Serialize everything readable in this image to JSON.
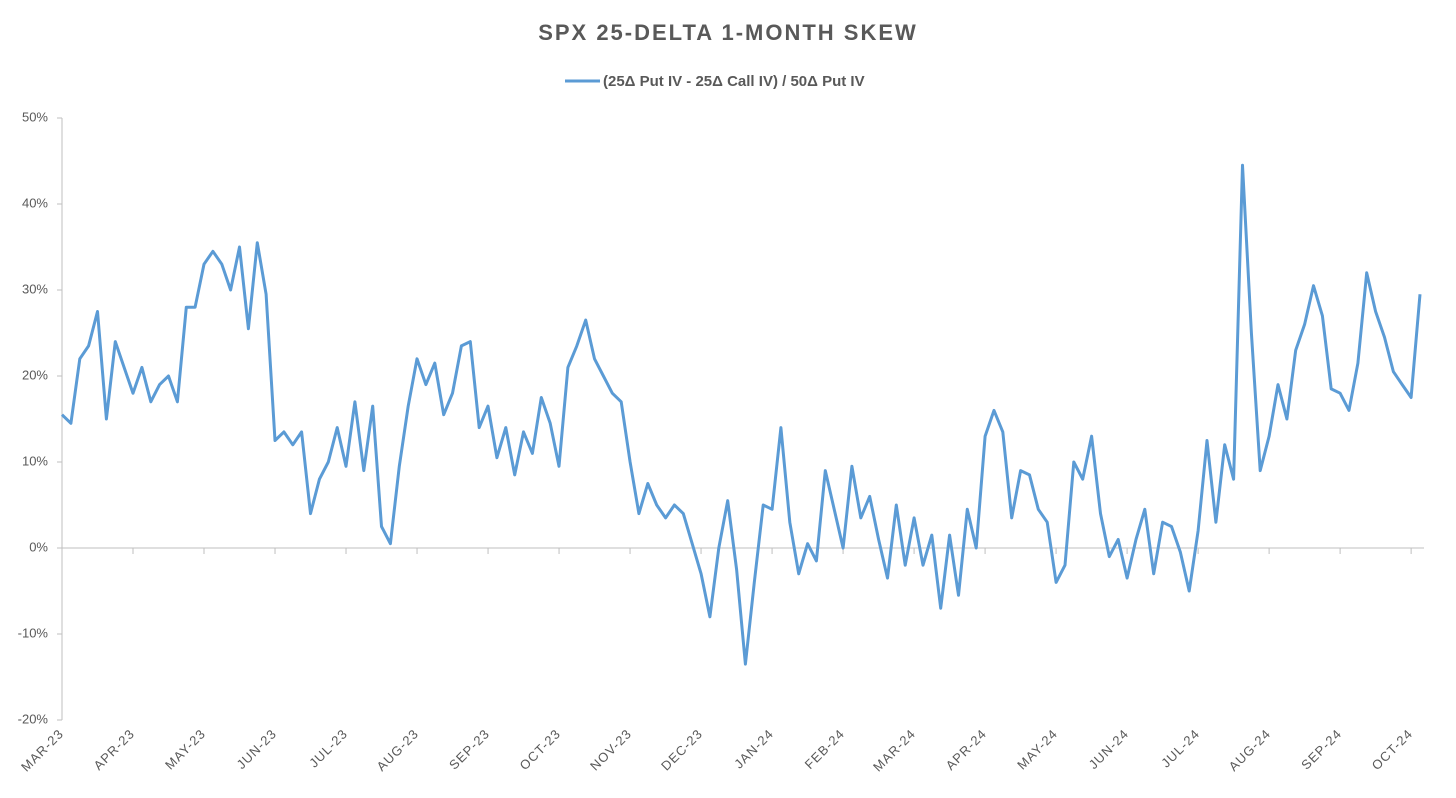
{
  "chart_data": {
    "type": "line",
    "title": "SPX 25-DELTA 1-MONTH SKEW",
    "categories": [
      "MAR-23",
      null,
      null,
      null,
      null,
      null,
      null,
      null,
      "APR-23",
      null,
      null,
      null,
      null,
      null,
      null,
      null,
      "MAY-23",
      null,
      null,
      null,
      null,
      null,
      null,
      null,
      "JUN-23",
      null,
      null,
      null,
      null,
      null,
      null,
      null,
      "JUL-23",
      null,
      null,
      null,
      null,
      null,
      null,
      null,
      "AUG-23",
      null,
      null,
      null,
      null,
      null,
      null,
      null,
      "SEP-23",
      null,
      null,
      null,
      null,
      null,
      null,
      null,
      "OCT-23",
      null,
      null,
      null,
      null,
      null,
      null,
      null,
      "NOV-23",
      null,
      null,
      null,
      null,
      null,
      null,
      null,
      "DEC-23",
      null,
      null,
      null,
      null,
      null,
      null,
      null,
      "JAN-24",
      null,
      null,
      null,
      null,
      null,
      null,
      null,
      "FEB-24",
      null,
      null,
      null,
      null,
      null,
      null,
      null,
      "MAR-24",
      null,
      null,
      null,
      null,
      null,
      null,
      null,
      "APR-24",
      null,
      null,
      null,
      null,
      null,
      null,
      null,
      "MAY-24",
      null,
      null,
      null,
      null,
      null,
      null,
      null,
      "JUN-24",
      null,
      null,
      null,
      null,
      null,
      null,
      null,
      "JUL-24",
      null,
      null,
      null,
      null,
      null,
      null,
      null,
      "AUG-24",
      null,
      null,
      null,
      null,
      null,
      null,
      null,
      "SEP-24",
      null,
      null,
      null,
      null,
      null,
      null,
      null,
      "OCT-24",
      null
    ],
    "series": [
      {
        "name": "(25Δ Put IV - 25Δ Call IV) / 50Δ Put IV",
        "color": "#5b9bd5",
        "values": [
          15.5,
          14.5,
          22,
          23.5,
          27.5,
          15,
          24,
          21,
          18,
          21,
          17,
          19,
          20,
          17,
          28,
          28,
          33,
          34.5,
          33,
          30,
          35,
          25.5,
          35.5,
          29.5,
          12.5,
          13.5,
          12,
          13.5,
          4,
          8,
          10,
          14,
          9.5,
          17,
          9,
          16.5,
          2.5,
          0.5,
          9.5,
          16.5,
          22,
          19,
          21.5,
          15.5,
          18,
          23.5,
          24,
          14,
          16.5,
          10.5,
          14,
          8.5,
          13.5,
          11,
          17.5,
          14.5,
          9.5,
          21,
          23.5,
          26.5,
          22,
          20,
          18,
          17,
          10,
          4,
          7.5,
          5,
          3.5,
          5,
          4,
          0.5,
          -3,
          -8,
          0,
          5.5,
          -2.5,
          -13.5,
          -4,
          5,
          4.5,
          14,
          3,
          -3,
          0.5,
          -1.5,
          9,
          4.5,
          0,
          9.5,
          3.5,
          6,
          1,
          -3.5,
          5,
          -2,
          3.5,
          -2,
          1.5,
          -7,
          1.5,
          -5.5,
          4.5,
          0,
          13,
          16,
          13.5,
          3.5,
          9,
          8.5,
          4.5,
          3,
          -4,
          -2,
          10,
          8,
          13,
          4,
          -1,
          1,
          -3.5,
          1,
          4.5,
          -3,
          3,
          2.5,
          -0.5,
          -5,
          2,
          12.5,
          3,
          12,
          8,
          44.5,
          25,
          9,
          13,
          19,
          15,
          23,
          26,
          30.5,
          27,
          18.5,
          18,
          16,
          21.5,
          32,
          27.5,
          24.5,
          20.5,
          19,
          17.5,
          29.5
        ]
      }
    ],
    "ylim": [
      -20,
      50
    ],
    "yticks": [
      {
        "value": -20,
        "label": "-20%"
      },
      {
        "value": -10,
        "label": "-10%"
      },
      {
        "value": 0,
        "label": "0%"
      },
      {
        "value": 10,
        "label": "10%"
      },
      {
        "value": 20,
        "label": "20%"
      },
      {
        "value": 30,
        "label": "30%"
      },
      {
        "value": 40,
        "label": "40%"
      },
      {
        "value": 50,
        "label": "50%"
      }
    ],
    "grid": false,
    "legend": "top"
  }
}
